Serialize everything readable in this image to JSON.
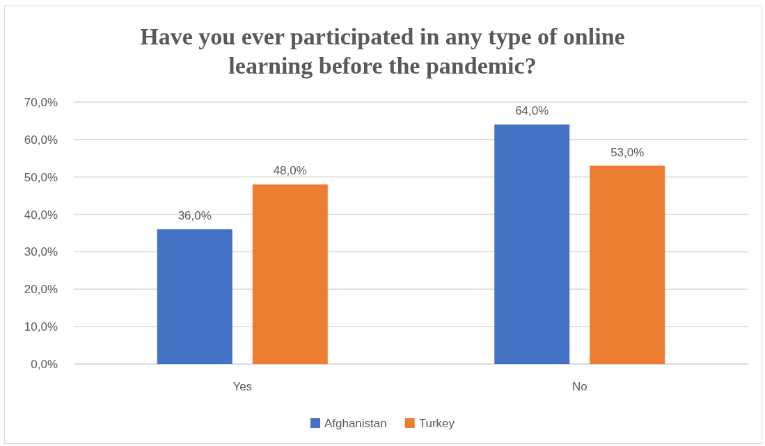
{
  "chart_data": {
    "type": "bar",
    "title": "Have you ever participated in any type of online learning before the pandemic?",
    "categories": [
      "Yes",
      "No"
    ],
    "series": [
      {
        "name": "Afghanistan",
        "color": "#4472c4",
        "values": [
          36,
          64
        ],
        "value_labels": [
          "36,0%",
          "64,0%"
        ]
      },
      {
        "name": "Turkey",
        "color": "#ed7d31",
        "values": [
          48,
          53
        ],
        "value_labels": [
          "48,0%",
          "53,0%"
        ]
      }
    ],
    "ylim": [
      0,
      70
    ],
    "yticks": [
      {
        "value": 0,
        "label": "0,0%"
      },
      {
        "value": 10,
        "label": "10,0%"
      },
      {
        "value": 20,
        "label": "20,0%"
      },
      {
        "value": 30,
        "label": "30,0%"
      },
      {
        "value": 40,
        "label": "40,0%"
      },
      {
        "value": 50,
        "label": "50,0%"
      },
      {
        "value": 60,
        "label": "60,0%"
      },
      {
        "value": 70,
        "label": "70,0%"
      }
    ],
    "grid": "y",
    "legend": "bottom"
  }
}
